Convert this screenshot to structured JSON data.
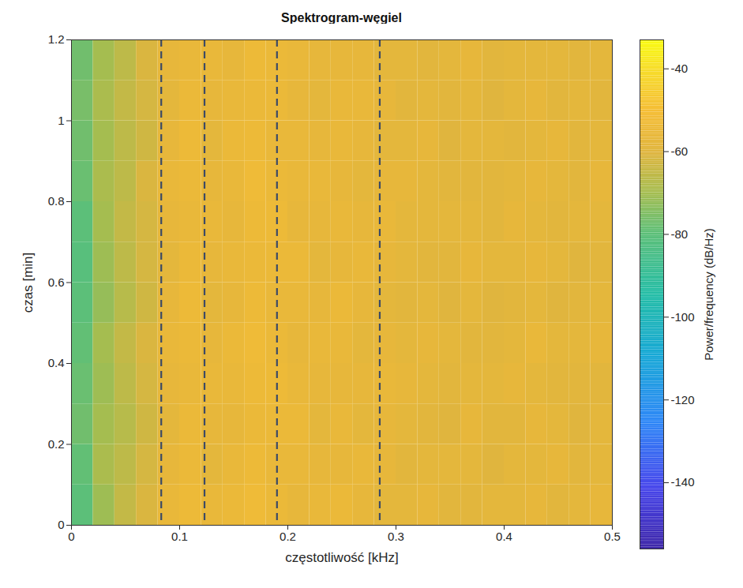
{
  "chart_data": {
    "type": "heatmap",
    "title": "Spektrogram-węgiel",
    "x_label": "częstotliwość [kHz]",
    "y_label": "czas [min]",
    "xlim": [
      0,
      0.5
    ],
    "ylim": [
      0,
      1.2
    ],
    "xticks": [
      0,
      0.1,
      0.2,
      0.3,
      0.4,
      0.5
    ],
    "yticks": [
      0,
      0.2,
      0.4,
      0.6,
      0.8,
      1,
      1.2
    ],
    "grid": false,
    "x_edges": [
      0,
      0.02,
      0.04,
      0.06,
      0.08,
      0.1,
      0.12,
      0.14,
      0.16,
      0.18,
      0.2,
      0.22,
      0.24,
      0.26,
      0.28,
      0.3,
      0.32,
      0.34,
      0.36,
      0.38,
      0.4,
      0.42,
      0.44,
      0.46,
      0.48,
      0.5
    ],
    "y_edges": [
      0,
      0.1,
      0.2,
      0.3,
      0.4,
      0.5,
      0.6,
      0.7,
      0.8,
      0.9,
      1,
      1.1,
      1.2
    ],
    "values": [
      [
        -80,
        -71,
        -65,
        -61,
        -56,
        -54,
        -56,
        -55,
        -53,
        -55,
        -57,
        -56,
        -55,
        -57,
        -58,
        -58,
        -57,
        -59,
        -59,
        -58,
        -58,
        -57,
        -59,
        -58,
        -57
      ],
      [
        -79,
        -69,
        -66,
        -62,
        -57,
        -55,
        -58,
        -56,
        -54,
        -56,
        -56,
        -57,
        -57,
        -56,
        -57,
        -59,
        -58,
        -58,
        -58,
        -60,
        -58,
        -58,
        -57,
        -59,
        -58
      ],
      [
        -77,
        -70,
        -67,
        -63,
        -58,
        -55,
        -57,
        -57,
        -55,
        -55,
        -55,
        -58,
        -56,
        -58,
        -57,
        -58,
        -59,
        -60,
        -57,
        -59,
        -59,
        -57,
        -58,
        -60,
        -58
      ],
      [
        -78,
        -71,
        -66,
        -62,
        -57,
        -56,
        -56,
        -56,
        -54,
        -54,
        -56,
        -57,
        -57,
        -57,
        -56,
        -57,
        -58,
        -59,
        -58,
        -58,
        -57,
        -58,
        -59,
        -59,
        -59
      ],
      [
        -79,
        -70,
        -65,
        -61,
        -56,
        -55,
        -57,
        -55,
        -53,
        -55,
        -57,
        -56,
        -56,
        -58,
        -57,
        -58,
        -57,
        -58,
        -59,
        -59,
        -58,
        -56,
        -58,
        -58,
        -57
      ],
      [
        -80,
        -72,
        -67,
        -63,
        -57,
        -54,
        -58,
        -57,
        -54,
        -56,
        -56,
        -57,
        -55,
        -57,
        -58,
        -59,
        -58,
        -60,
        -58,
        -60,
        -59,
        -58,
        -60,
        -59,
        -58
      ],
      [
        -81,
        -71,
        -66,
        -62,
        -58,
        -55,
        -57,
        -56,
        -55,
        -55,
        -55,
        -58,
        -57,
        -56,
        -57,
        -58,
        -59,
        -59,
        -57,
        -58,
        -58,
        -57,
        -58,
        -60,
        -59
      ],
      [
        -80,
        -70,
        -65,
        -62,
        -57,
        -56,
        -56,
        -57,
        -54,
        -54,
        -57,
        -57,
        -56,
        -57,
        -56,
        -58,
        -58,
        -58,
        -58,
        -59,
        -57,
        -58,
        -59,
        -58,
        -58
      ],
      [
        -78,
        -69,
        -66,
        -61,
        -56,
        -55,
        -57,
        -56,
        -53,
        -55,
        -56,
        -56,
        -57,
        -58,
        -57,
        -57,
        -58,
        -59,
        -59,
        -59,
        -58,
        -57,
        -58,
        -59,
        -57
      ],
      [
        -77,
        -70,
        -66,
        -63,
        -57,
        -54,
        -58,
        -55,
        -54,
        -56,
        -56,
        -57,
        -56,
        -57,
        -58,
        -58,
        -57,
        -60,
        -58,
        -58,
        -59,
        -58,
        -57,
        -59,
        -58
      ],
      [
        -76,
        -69,
        -65,
        -62,
        -58,
        -55,
        -57,
        -56,
        -55,
        -55,
        -57,
        -58,
        -56,
        -56,
        -57,
        -59,
        -58,
        -59,
        -58,
        -60,
        -58,
        -57,
        -59,
        -58,
        -59
      ],
      [
        -77,
        -70,
        -66,
        -61,
        -57,
        -56,
        -56,
        -57,
        -54,
        -55,
        -56,
        -57,
        -57,
        -57,
        -58,
        -58,
        -59,
        -58,
        -57,
        -59,
        -58,
        -58,
        -58,
        -59,
        -58
      ]
    ],
    "colorbar": {
      "label": "Power/frequency (dB/Hz)",
      "range": [
        -156,
        -33
      ],
      "ticks": [
        -140,
        -120,
        -100,
        -80,
        -60,
        -40
      ]
    },
    "vertical_lines": {
      "x": [
        0.083,
        0.123,
        0.19,
        0.285
      ],
      "line_style": "dashed",
      "color": "#3c4a66"
    }
  }
}
